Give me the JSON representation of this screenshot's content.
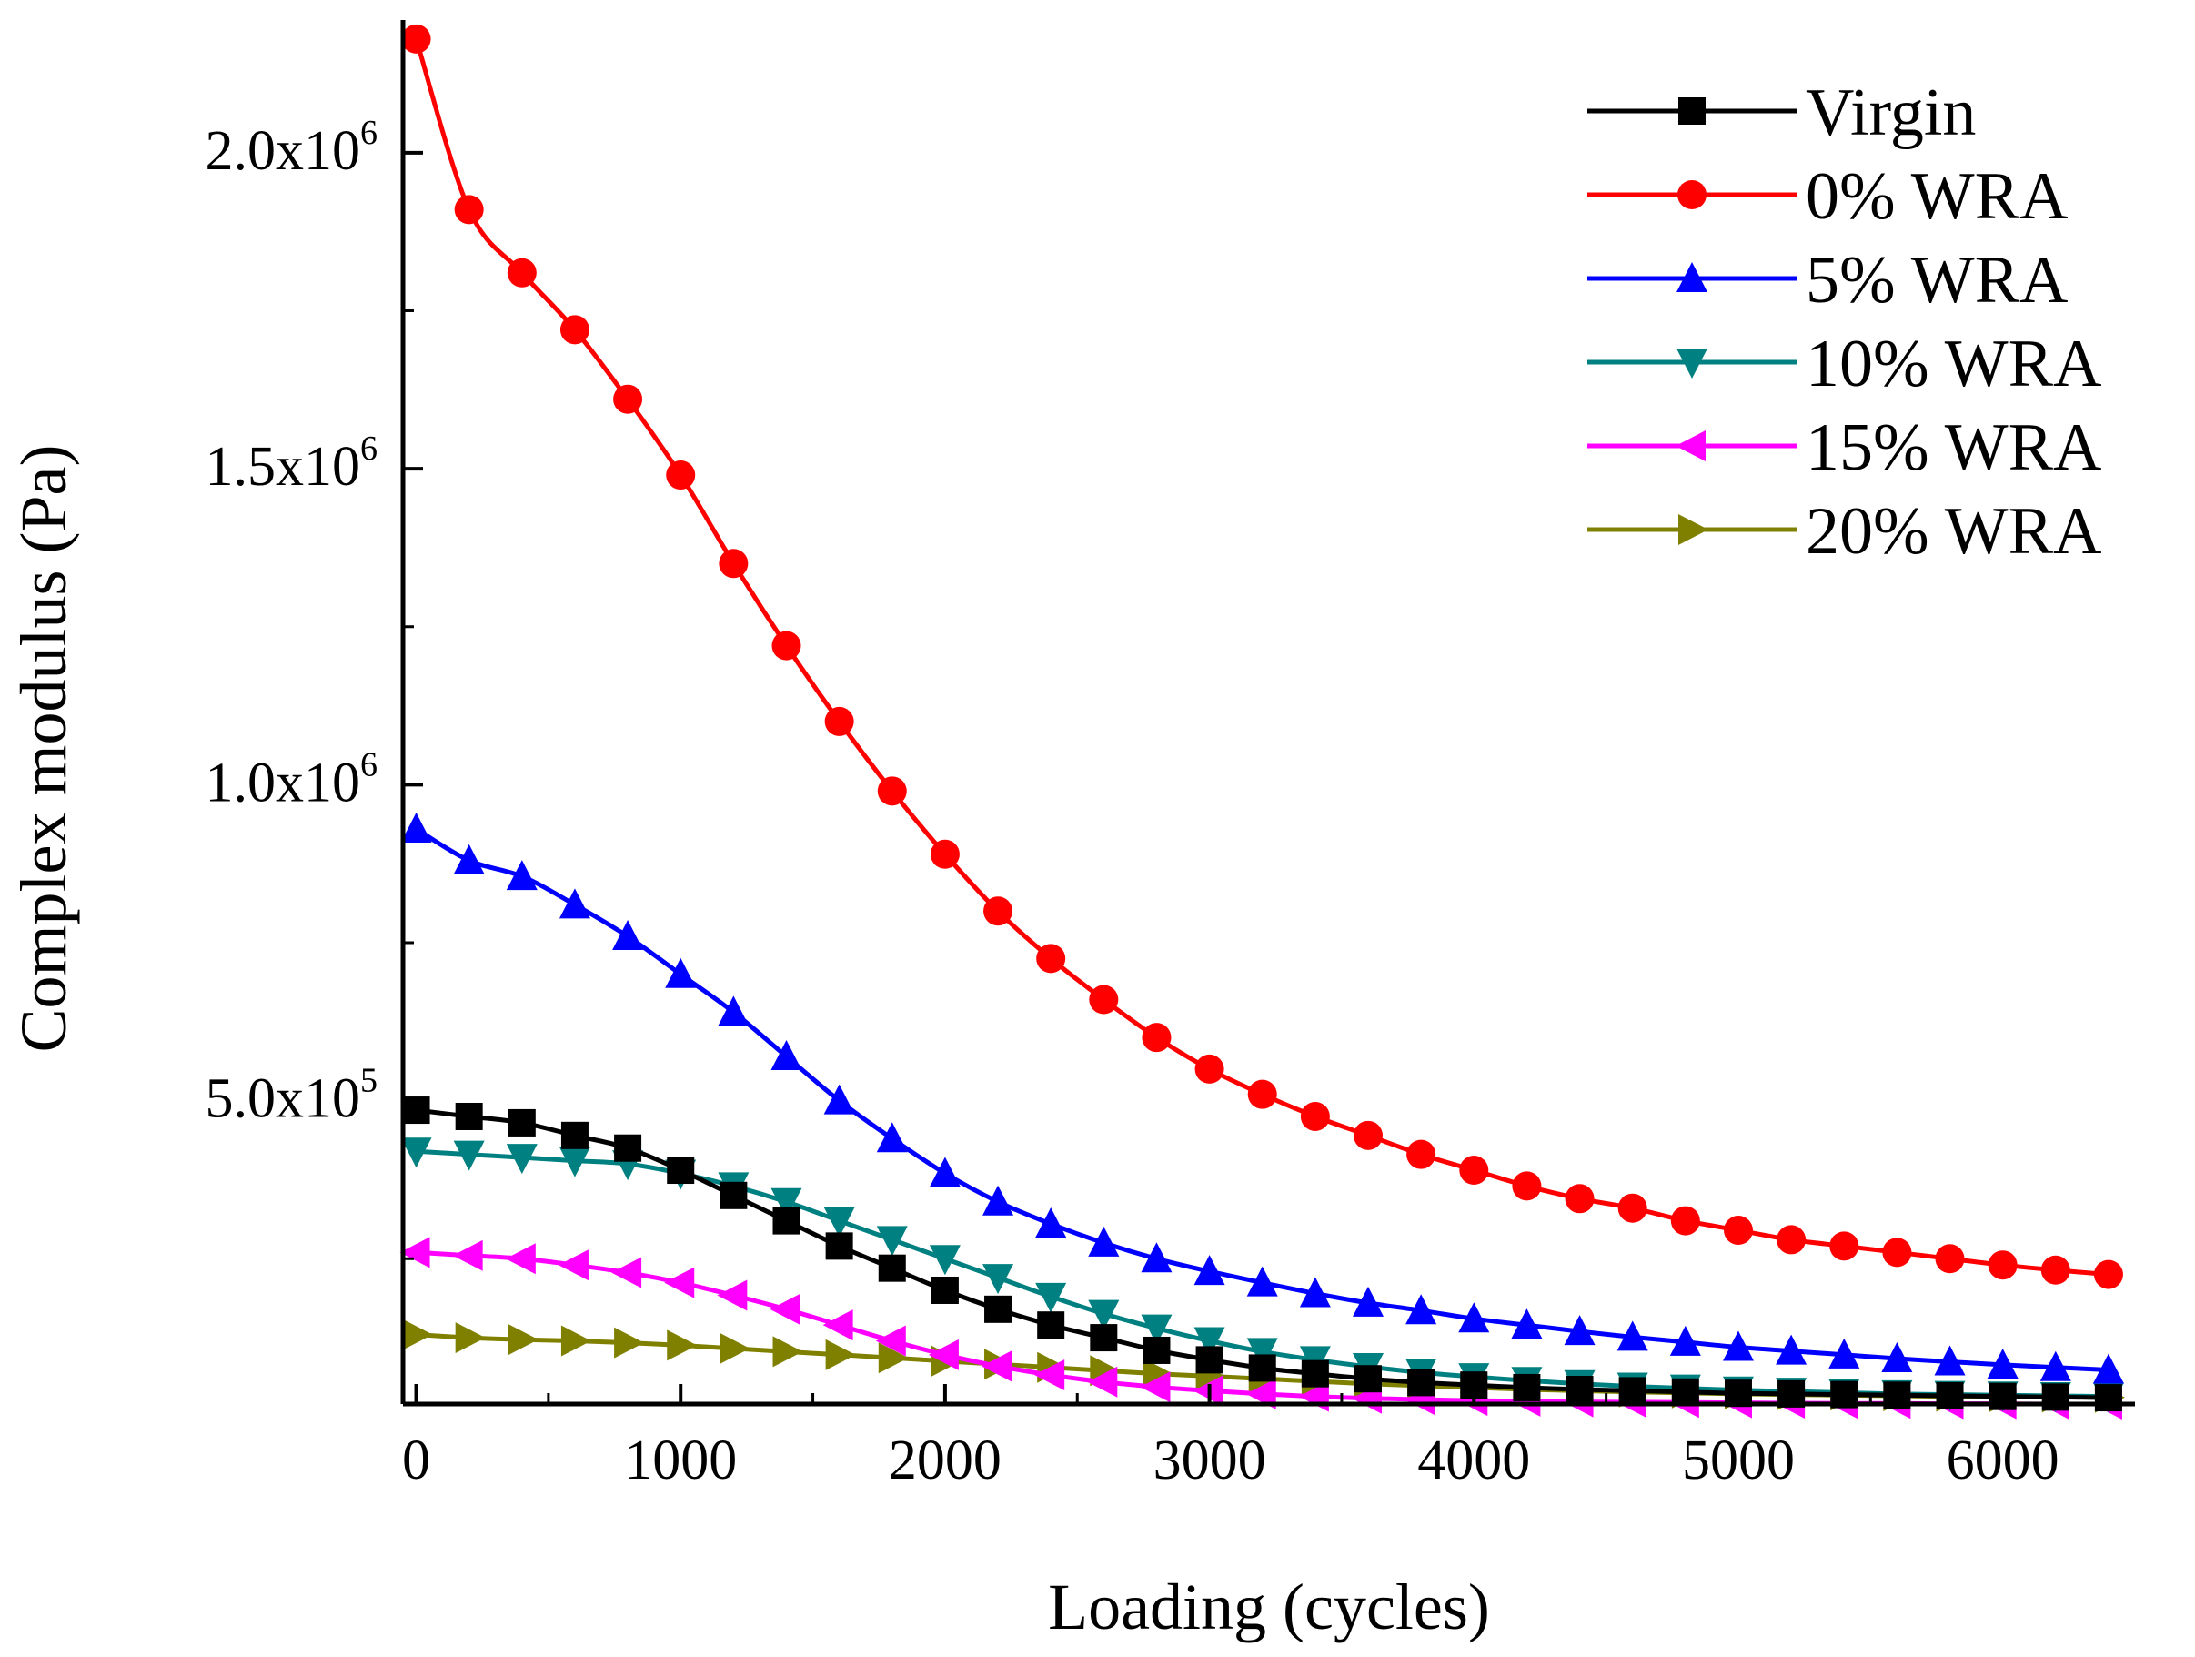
{
  "chart_data": {
    "type": "line",
    "title": "",
    "xlabel": "Loading (cycles)",
    "ylabel": "Complex modulus (Pa)",
    "xlim": [
      -50,
      6500
    ],
    "ylim": [
      20000,
      2210000
    ],
    "x_ticks": [
      {
        "value": 0,
        "label": "0"
      },
      {
        "value": 1000,
        "label": "1000"
      },
      {
        "value": 2000,
        "label": "2000"
      },
      {
        "value": 3000,
        "label": "3000"
      },
      {
        "value": 4000,
        "label": "4000"
      },
      {
        "value": 5000,
        "label": "5000"
      },
      {
        "value": 6000,
        "label": "6000"
      }
    ],
    "y_ticks": [
      {
        "value": 500000,
        "mantissa": "5.0x10",
        "exponent": "5"
      },
      {
        "value": 1000000,
        "mantissa": "1.0x10",
        "exponent": "6"
      },
      {
        "value": 1500000,
        "mantissa": "1.5x10",
        "exponent": "6"
      },
      {
        "value": 2000000,
        "mantissa": "2.0x10",
        "exponent": "6"
      }
    ],
    "x": [
      0,
      200,
      400,
      600,
      800,
      1000,
      1200,
      1400,
      1600,
      1800,
      2000,
      2200,
      2400,
      2600,
      2800,
      3000,
      3200,
      3400,
      3600,
      3800,
      4000,
      4200,
      4400,
      4600,
      4800,
      5000,
      5200,
      5400,
      5600,
      5800,
      6000,
      6200,
      6400
    ],
    "legend_position": "top-right",
    "grid": false,
    "series": [
      {
        "name": "Virgin",
        "color": "#000000",
        "marker": "square",
        "values": [
          485000,
          475000,
          465000,
          445000,
          425000,
          390000,
          350000,
          310000,
          270000,
          235000,
          200000,
          170000,
          145000,
          125000,
          105000,
          90000,
          77000,
          68000,
          60000,
          54000,
          50000,
          46000,
          43000,
          41000,
          39000,
          37000,
          36000,
          35000,
          34000,
          33000,
          32000,
          31000,
          30000
        ]
      },
      {
        "name": "0% WRA",
        "color": "#ff0000",
        "marker": "circle",
        "values": [
          2180000,
          1910000,
          1810000,
          1720000,
          1610000,
          1490000,
          1350000,
          1220000,
          1100000,
          990000,
          890000,
          800000,
          725000,
          660000,
          600000,
          550000,
          510000,
          475000,
          445000,
          415000,
          390000,
          365000,
          345000,
          330000,
          310000,
          295000,
          280000,
          270000,
          260000,
          250000,
          240000,
          232000,
          225000
        ]
      },
      {
        "name": "5% WRA",
        "color": "#0000ff",
        "marker": "triangle-up",
        "values": [
          930000,
          880000,
          855000,
          810000,
          760000,
          700000,
          640000,
          570000,
          500000,
          440000,
          385000,
          340000,
          305000,
          275000,
          250000,
          230000,
          212000,
          195000,
          180000,
          168000,
          155000,
          145000,
          135000,
          126000,
          118000,
          110000,
          104000,
          98000,
          92000,
          87000,
          82000,
          78000,
          74000
        ]
      },
      {
        "name": "10% WRA",
        "color": "#008080",
        "marker": "triangle-down",
        "values": [
          420000,
          415000,
          410000,
          405000,
          400000,
          385000,
          365000,
          340000,
          310000,
          280000,
          250000,
          220000,
          190000,
          163000,
          140000,
          120000,
          103000,
          90000,
          79000,
          70000,
          63000,
          57000,
          52000,
          48000,
          45000,
          42000,
          40000,
          38000,
          36000,
          35000,
          34000,
          33000,
          32000
        ]
      },
      {
        "name": "15% WRA",
        "color": "#ff00ff",
        "marker": "triangle-left",
        "values": [
          260000,
          255000,
          250000,
          240000,
          228000,
          212000,
          192000,
          170000,
          145000,
          120000,
          98000,
          80000,
          66000,
          55000,
          47000,
          41000,
          36000,
          32000,
          29000,
          27000,
          25500,
          24500,
          23500,
          23000,
          22500,
          22000,
          21500,
          21000,
          21000,
          20500,
          20500,
          20000,
          20000
        ]
      },
      {
        "name": "20% WRA",
        "color": "#808000",
        "marker": "triangle-right",
        "values": [
          130000,
          125000,
          122000,
          120000,
          117000,
          113000,
          108000,
          103000,
          98000,
          93000,
          88000,
          83000,
          78000,
          73000,
          68000,
          64000,
          60000,
          56000,
          52000,
          49000,
          46000,
          43000,
          41000,
          39000,
          37500,
          36000,
          35000,
          34000,
          33000,
          32000,
          31500,
          31000,
          30500
        ]
      }
    ]
  }
}
